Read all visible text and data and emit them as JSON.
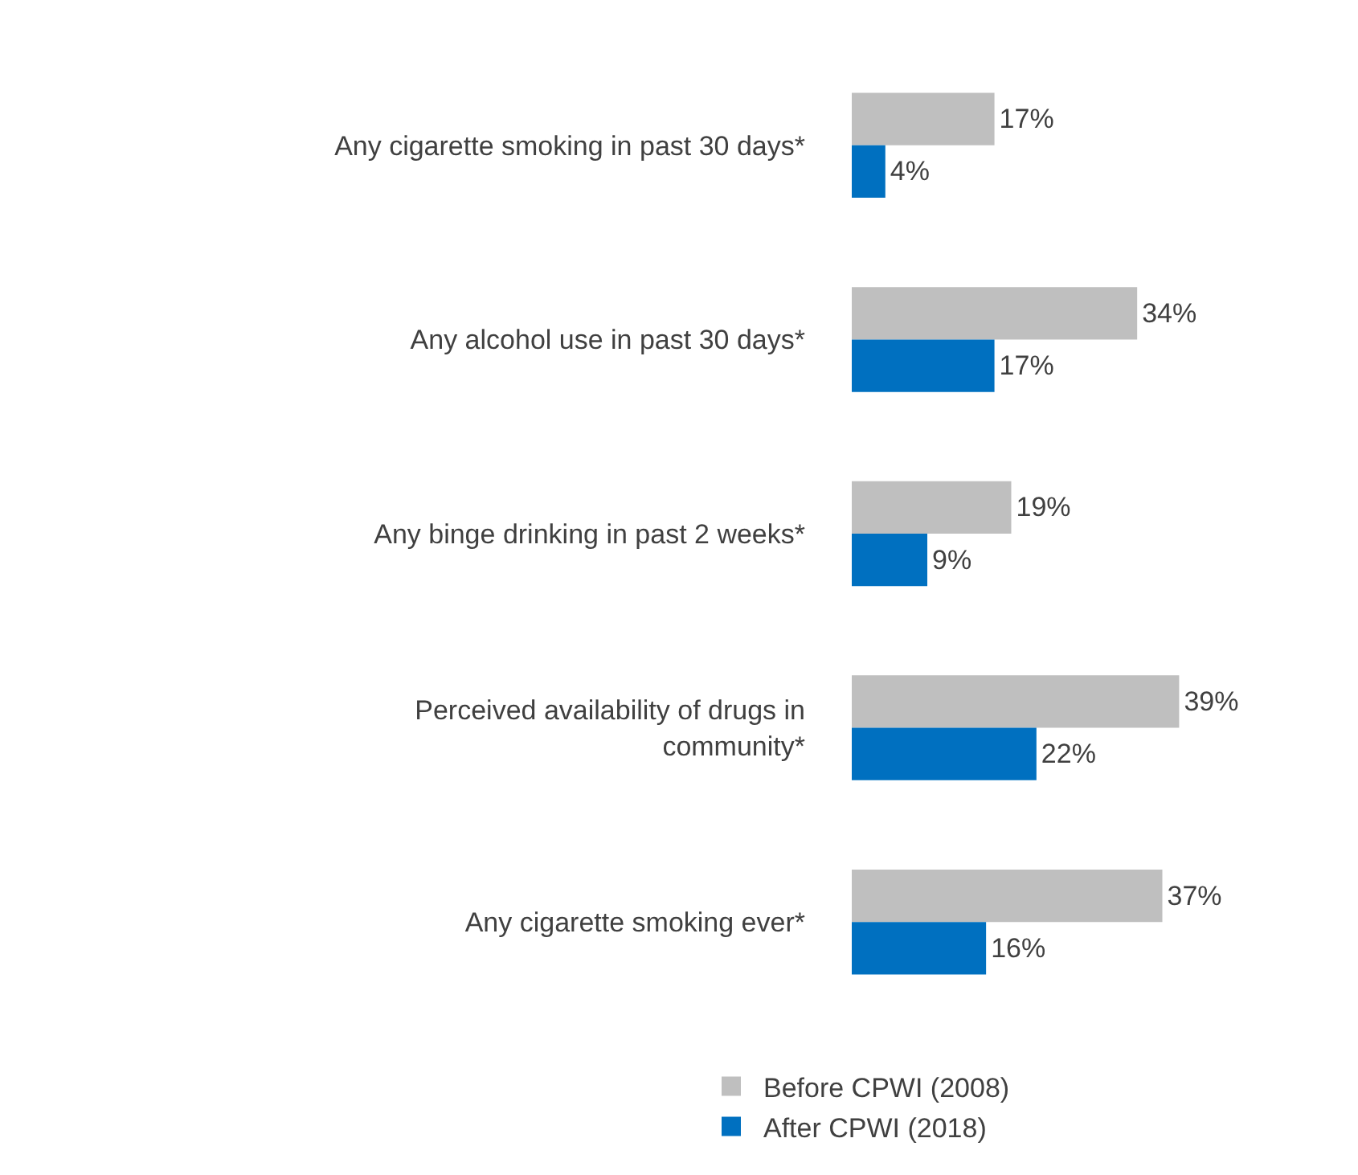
{
  "chart_data": {
    "type": "bar",
    "orientation": "horizontal",
    "categories": [
      "Any cigarette smoking in past 30 days*",
      "Any alcohol use in past 30 days*",
      "Any binge drinking in past 2 weeks*",
      "Perceived availability of drugs in community*",
      "Any cigarette smoking ever*"
    ],
    "series": [
      {
        "name": "Before CPWI (2008)",
        "color": "#bfbfbf",
        "values": [
          17,
          34,
          19,
          39,
          37
        ],
        "value_labels": [
          "17%",
          "34%",
          "19%",
          "39%",
          "37%"
        ]
      },
      {
        "name": "After CPWI (2018)",
        "color": "#0070c0",
        "values": [
          4,
          17,
          9,
          22,
          16
        ],
        "value_labels": [
          "4%",
          "17%",
          "9%",
          "22%",
          "16%"
        ]
      }
    ],
    "legend": "bottom"
  }
}
